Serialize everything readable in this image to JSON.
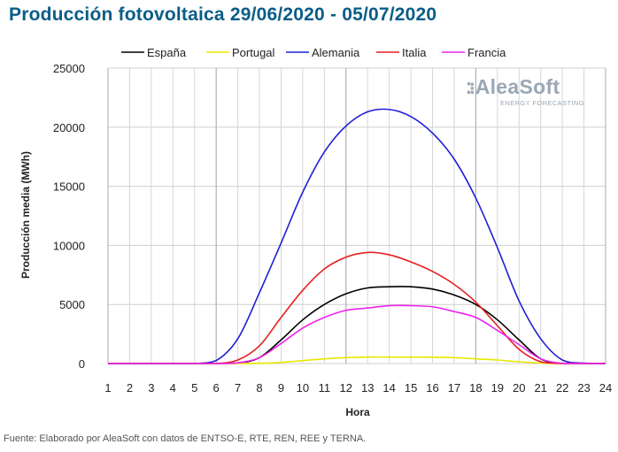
{
  "title": "Producción fotovoltaica 29/06/2020 - 05/07/2020",
  "source": "Fuente: Elaborado por AleaSoft con datos de ENTSO-E, RTE, REN, REE y TERNA.",
  "logo": {
    "main": "AleaSoft",
    "sub": "ENERGY FORECASTING"
  },
  "chart_data": {
    "type": "line",
    "xlabel": "Hora",
    "ylabel": "Producción media (MWh)",
    "xlim": [
      1,
      24
    ],
    "ylim": [
      0,
      25000
    ],
    "yticks": [
      0,
      5000,
      10000,
      15000,
      20000,
      25000
    ],
    "grid": true,
    "legend": "top",
    "x": [
      1,
      2,
      3,
      4,
      5,
      6,
      7,
      8,
      9,
      10,
      11,
      12,
      13,
      14,
      15,
      16,
      17,
      18,
      19,
      20,
      21,
      22,
      23,
      24
    ],
    "series": [
      {
        "name": "España",
        "color": "#000000",
        "values": [
          0,
          0,
          0,
          0,
          0,
          0,
          30,
          500,
          2000,
          3700,
          5000,
          5900,
          6400,
          6500,
          6500,
          6300,
          5800,
          5000,
          3700,
          2000,
          400,
          10,
          0,
          0
        ]
      },
      {
        "name": "Portugal",
        "color": "#e8e800",
        "values": [
          0,
          0,
          0,
          0,
          0,
          0,
          0,
          20,
          100,
          250,
          400,
          500,
          550,
          550,
          550,
          540,
          500,
          400,
          300,
          150,
          40,
          0,
          0,
          0
        ]
      },
      {
        "name": "Alemania",
        "color": "#1f1fd6",
        "values": [
          0,
          0,
          0,
          0,
          0,
          250,
          2100,
          6000,
          10200,
          14500,
          17900,
          20100,
          21300,
          21500,
          20900,
          19500,
          17300,
          14000,
          9800,
          5300,
          2100,
          300,
          30,
          0
        ]
      },
      {
        "name": "Italia",
        "color": "#e62020",
        "values": [
          0,
          0,
          0,
          0,
          0,
          0,
          300,
          1500,
          3900,
          6200,
          8000,
          9000,
          9400,
          9200,
          8600,
          7800,
          6700,
          5200,
          3200,
          1200,
          150,
          0,
          0,
          0
        ]
      },
      {
        "name": "Francia",
        "color": "#ee22ee",
        "values": [
          0,
          0,
          0,
          0,
          0,
          0,
          60,
          500,
          1700,
          3000,
          3900,
          4500,
          4700,
          4900,
          4900,
          4800,
          4400,
          3900,
          2800,
          1600,
          400,
          20,
          0,
          0
        ]
      }
    ]
  }
}
